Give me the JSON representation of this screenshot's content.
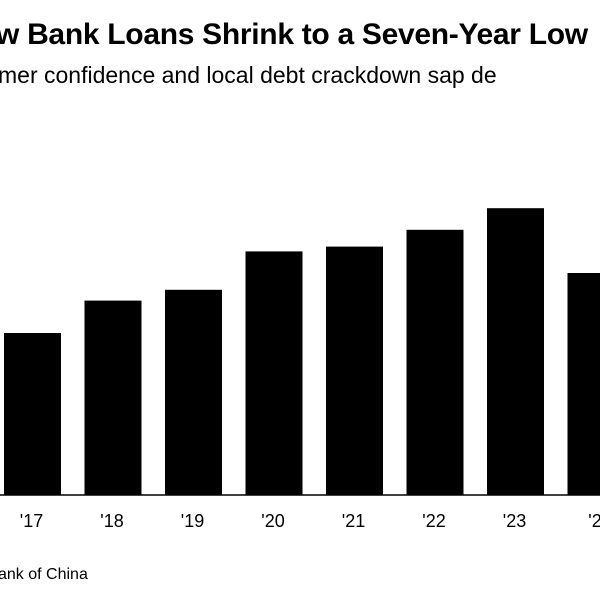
{
  "title": "w Bank Loans Shrink to a Seven-Year Low",
  "subtitle": "mer confidence and local debt crackdown sap de",
  "source": "ank of China",
  "chart_data": {
    "type": "bar",
    "categories": [
      "'17",
      "'18",
      "'19",
      "'20",
      "'21",
      "'22",
      "'23",
      "'2"
    ],
    "values": [
      13.5,
      16.2,
      17.1,
      20.3,
      20.7,
      22.1,
      23.9,
      18.5
    ],
    "ylim": [
      0,
      30
    ],
    "bar_color": "#000000",
    "axis_color": "#000000",
    "grid": false
  }
}
